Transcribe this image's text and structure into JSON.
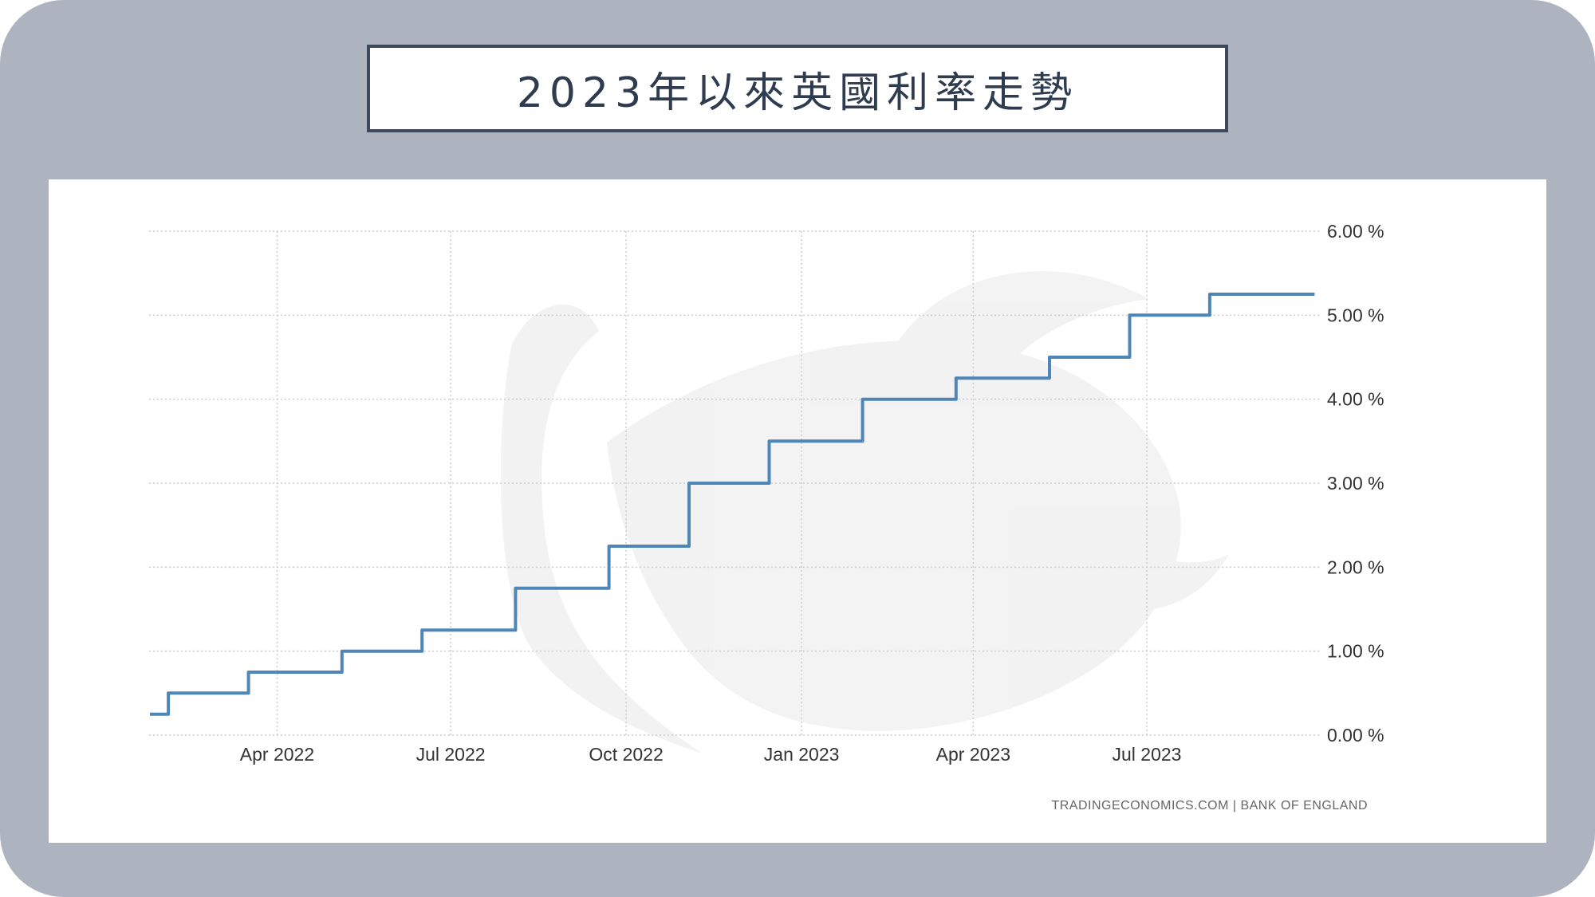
{
  "title": "2023年以來英國利率走勢",
  "source": "TRADINGECONOMICS.COM  |  BANK OF ENGLAND",
  "colors": {
    "frame": "#adb4c0",
    "line": "#4f86b8",
    "grid": "#cccccc",
    "title_border": "#3e4a5c"
  },
  "chart_data": {
    "type": "line",
    "step": true,
    "ylim": [
      0,
      6
    ],
    "y_ticks": [
      {
        "value": 0,
        "label": "0.00 %"
      },
      {
        "value": 1,
        "label": "1.00 %"
      },
      {
        "value": 2,
        "label": "2.00 %"
      },
      {
        "value": 3,
        "label": "3.00 %"
      },
      {
        "value": 4,
        "label": "4.00 %"
      },
      {
        "value": 5,
        "label": "5.00 %"
      },
      {
        "value": 6,
        "label": "6.00 %"
      }
    ],
    "x_range": [
      "2022-01-26",
      "2023-10-01"
    ],
    "x_ticks": [
      {
        "date": "2022-04-01",
        "label": "Apr 2022"
      },
      {
        "date": "2022-07-01",
        "label": "Jul 2022"
      },
      {
        "date": "2022-10-01",
        "label": "Oct 2022"
      },
      {
        "date": "2023-01-01",
        "label": "Jan 2023"
      },
      {
        "date": "2023-04-01",
        "label": "Apr 2023"
      },
      {
        "date": "2023-07-01",
        "label": "Jul 2023"
      }
    ],
    "series": [
      {
        "points": [
          {
            "date": "2022-01-26",
            "value": 0.25
          },
          {
            "date": "2022-02-03",
            "value": 0.5
          },
          {
            "date": "2022-03-17",
            "value": 0.75
          },
          {
            "date": "2022-05-05",
            "value": 1.0
          },
          {
            "date": "2022-06-16",
            "value": 1.25
          },
          {
            "date": "2022-08-04",
            "value": 1.75
          },
          {
            "date": "2022-09-22",
            "value": 2.25
          },
          {
            "date": "2022-11-03",
            "value": 3.0
          },
          {
            "date": "2022-12-15",
            "value": 3.5
          },
          {
            "date": "2023-02-02",
            "value": 4.0
          },
          {
            "date": "2023-03-23",
            "value": 4.25
          },
          {
            "date": "2023-05-11",
            "value": 4.5
          },
          {
            "date": "2023-06-22",
            "value": 5.0
          },
          {
            "date": "2023-08-03",
            "value": 5.25
          },
          {
            "date": "2023-09-27",
            "value": 5.25
          }
        ]
      }
    ]
  }
}
